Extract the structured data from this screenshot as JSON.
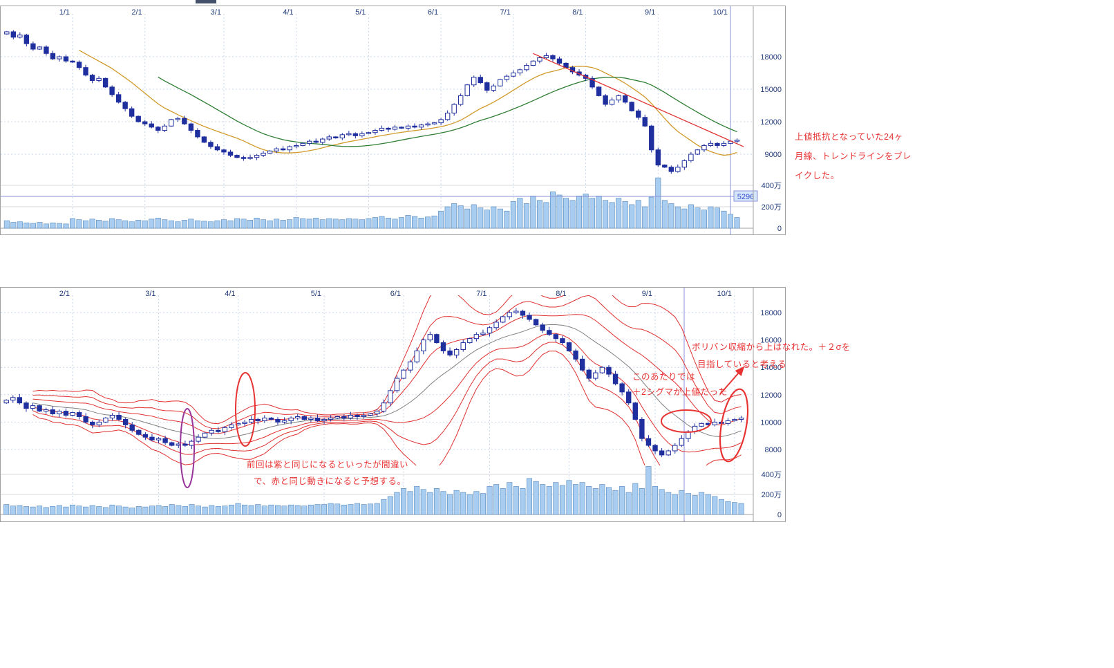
{
  "colors": {
    "candle_up_fill": "#ffffff",
    "candle_down_fill": "#1f2f9e",
    "candle_stroke": "#1f2f9e",
    "volume_fill": "#a8cdf0",
    "volume_stroke": "#5588bb",
    "ma_short": "#d19a2a",
    "ma_long": "#2e7d32",
    "trendline": "#e03030",
    "bollinger_band": "#e03030",
    "bollinger_center": "#808080",
    "grid": "#c9d6ea",
    "volume_grid": "#d9d9d9",
    "frame": "#a0a0a0",
    "axis_text": "#1f3a7a",
    "cursor_line": "#8892d8",
    "marker_text": "#3b4fd0",
    "marker_bg": "#d6e6fa",
    "annotation_red": "#e83333",
    "annotation_purple": "#993399"
  },
  "chart_data": [
    {
      "type": "candlestick",
      "name": "long-term-price-chart-with-moving-averages-and-trendline",
      "x_ticks": [
        {
          "i": 10,
          "label": "1/1"
        },
        {
          "i": 21,
          "label": "2/1"
        },
        {
          "i": 33,
          "label": "3/1"
        },
        {
          "i": 44,
          "label": "4/1"
        },
        {
          "i": 55,
          "label": "5/1"
        },
        {
          "i": 66,
          "label": "6/1"
        },
        {
          "i": 77,
          "label": "7/1"
        },
        {
          "i": 88,
          "label": "8/1"
        },
        {
          "i": 99,
          "label": "9/1"
        },
        {
          "i": 110,
          "label": "10/1"
        }
      ],
      "price_ticks": [
        {
          "v": 18000,
          "label": "18000"
        },
        {
          "v": 15000,
          "label": "15000"
        },
        {
          "v": 12000,
          "label": "12000"
        },
        {
          "v": 9000,
          "label": "9000"
        }
      ],
      "volume_ticks": [
        {
          "v": 400,
          "label": "400万"
        },
        {
          "v": 200,
          "label": "200万"
        },
        {
          "v": 0,
          "label": "0"
        }
      ],
      "closes": [
        20300,
        19800,
        20000,
        19200,
        18700,
        18900,
        18300,
        17800,
        18000,
        17600,
        17500,
        17000,
        16300,
        15800,
        16000,
        15200,
        14500,
        13800,
        13200,
        12500,
        12000,
        11800,
        11500,
        11200,
        11600,
        12200,
        12300,
        11800,
        11200,
        10600,
        10100,
        9700,
        9400,
        9200,
        8900,
        8700,
        8600,
        8700,
        8900,
        9100,
        9300,
        9500,
        9400,
        9700,
        9800,
        10000,
        10200,
        10100,
        10400,
        10600,
        10500,
        10800,
        10900,
        10700,
        10900,
        11000,
        11200,
        11400,
        11300,
        11500,
        11400,
        11600,
        11500,
        11700,
        11800,
        11900,
        12200,
        12800,
        13600,
        14400,
        15400,
        16100,
        15600,
        14900,
        15300,
        15900,
        16200,
        16500,
        16800,
        17200,
        17600,
        17900,
        18100,
        17800,
        17400,
        17000,
        16600,
        16300,
        16000,
        15200,
        14400,
        13600,
        14000,
        14400,
        13800,
        13000,
        12400,
        11600,
        9400,
        8000,
        7800,
        7400,
        7800,
        8400,
        9000,
        9400,
        9800,
        10000,
        9800,
        10000,
        10200,
        10300
      ],
      "volumes": [
        70,
        55,
        60,
        50,
        45,
        55,
        40,
        50,
        45,
        40,
        90,
        80,
        70,
        85,
        75,
        65,
        90,
        80,
        70,
        60,
        75,
        70,
        85,
        95,
        80,
        70,
        60,
        75,
        85,
        70,
        65,
        60,
        70,
        80,
        70,
        90,
        85,
        75,
        95,
        80,
        70,
        85,
        75,
        80,
        100,
        90,
        85,
        95,
        80,
        90,
        85,
        80,
        90,
        85,
        80,
        90,
        100,
        110,
        95,
        85,
        100,
        120,
        110,
        95,
        105,
        115,
        160,
        200,
        230,
        210,
        180,
        220,
        190,
        170,
        200,
        180,
        160,
        250,
        280,
        230,
        300,
        260,
        240,
        340,
        310,
        280,
        260,
        300,
        320,
        280,
        300,
        260,
        240,
        280,
        250,
        220,
        260,
        200,
        290,
        470,
        260,
        230,
        200,
        180,
        220,
        190,
        170,
        200,
        190,
        160,
        130,
        100
      ],
      "ma_windows": {
        "short": 12,
        "long": 24
      },
      "trendline": {
        "from_i": 80,
        "from_price": 18300,
        "to_i": 112,
        "to_price": 9700
      },
      "cursor_i": 110,
      "volume_marker_label": "5296",
      "annotation": {
        "lines": [
          "上値抵抗となっていた24ヶ",
          "月線、トレンドラインをブレ",
          "イクした。"
        ]
      }
    },
    {
      "type": "candlestick",
      "name": "bollinger-band-chart",
      "x_ticks": [
        {
          "i": 10,
          "label": "2/1"
        },
        {
          "i": 23,
          "label": "3/1"
        },
        {
          "i": 35,
          "label": "4/1"
        },
        {
          "i": 48,
          "label": "5/1"
        },
        {
          "i": 60,
          "label": "6/1"
        },
        {
          "i": 73,
          "label": "7/1"
        },
        {
          "i": 85,
          "label": "8/1"
        },
        {
          "i": 98,
          "label": "9/1"
        },
        {
          "i": 110,
          "label": "10/1"
        }
      ],
      "price_ticks": [
        {
          "v": 18000,
          "label": "18000"
        },
        {
          "v": 16000,
          "label": "16000"
        },
        {
          "v": 14000,
          "label": "14000"
        },
        {
          "v": 12000,
          "label": "12000"
        },
        {
          "v": 10000,
          "label": "10000"
        },
        {
          "v": 8000,
          "label": "8000"
        }
      ],
      "volume_ticks": [
        {
          "v": 400,
          "label": "400万"
        },
        {
          "v": 200,
          "label": "200万"
        },
        {
          "v": 0,
          "label": "0"
        }
      ],
      "closes": [
        11600,
        11800,
        11400,
        11000,
        11200,
        10800,
        10900,
        10600,
        10800,
        10500,
        10700,
        10400,
        10000,
        9800,
        10000,
        10300,
        10500,
        10200,
        9800,
        9400,
        9100,
        8900,
        8700,
        8800,
        8500,
        8300,
        8400,
        8300,
        8600,
        8900,
        9200,
        9400,
        9300,
        9600,
        9800,
        9900,
        10000,
        10200,
        10100,
        10300,
        10200,
        10000,
        10100,
        10300,
        10400,
        10200,
        10300,
        10100,
        10200,
        10300,
        10400,
        10300,
        10500,
        10400,
        10500,
        10600,
        10800,
        11400,
        12300,
        13200,
        13800,
        14400,
        15200,
        16000,
        16400,
        15800,
        15200,
        14900,
        15300,
        15800,
        16100,
        16400,
        16500,
        16900,
        17300,
        17700,
        18000,
        18100,
        17800,
        17500,
        17100,
        16700,
        16400,
        16100,
        15800,
        15200,
        14600,
        13800,
        13200,
        13600,
        14000,
        13500,
        12800,
        12200,
        11400,
        10200,
        8800,
        8300,
        7900,
        7600,
        7900,
        8300,
        8800,
        9300,
        9700,
        9900,
        9800,
        10000,
        9900,
        10100,
        10200,
        10300
      ],
      "volumes": [
        100,
        85,
        90,
        80,
        75,
        85,
        70,
        80,
        90,
        75,
        95,
        85,
        75,
        90,
        80,
        70,
        95,
        85,
        75,
        65,
        80,
        75,
        85,
        90,
        80,
        100,
        90,
        80,
        100,
        85,
        75,
        90,
        80,
        85,
        95,
        110,
        95,
        90,
        100,
        85,
        95,
        90,
        85,
        95,
        90,
        85,
        95,
        100,
        100,
        110,
        105,
        95,
        100,
        110,
        100,
        105,
        110,
        150,
        180,
        220,
        260,
        230,
        280,
        250,
        220,
        260,
        230,
        200,
        240,
        220,
        200,
        230,
        210,
        280,
        300,
        260,
        320,
        280,
        260,
        360,
        330,
        300,
        280,
        320,
        290,
        340,
        300,
        320,
        280,
        260,
        300,
        270,
        240,
        280,
        220,
        310,
        260,
        480,
        280,
        250,
        220,
        200,
        240,
        210,
        190,
        220,
        200,
        180,
        150,
        130,
        120,
        110
      ],
      "bollinger": {
        "window": 13,
        "sigmas": [
          1,
          2,
          3
        ]
      },
      "cursor_x": 990,
      "annotations": {
        "expand": {
          "lines": [
            "ボリバン収縮から上はなれた。＋２σを",
            "目指していると考える"
          ]
        },
        "ceiling": {
          "lines": [
            "このあたりでは",
            "＋2シグマが上値だった"
          ]
        },
        "forecast": {
          "lines": [
            "前回は紫と同じになるといったが間違い",
            "で、赤と同じ動きになると予想する。"
          ]
        }
      }
    }
  ]
}
